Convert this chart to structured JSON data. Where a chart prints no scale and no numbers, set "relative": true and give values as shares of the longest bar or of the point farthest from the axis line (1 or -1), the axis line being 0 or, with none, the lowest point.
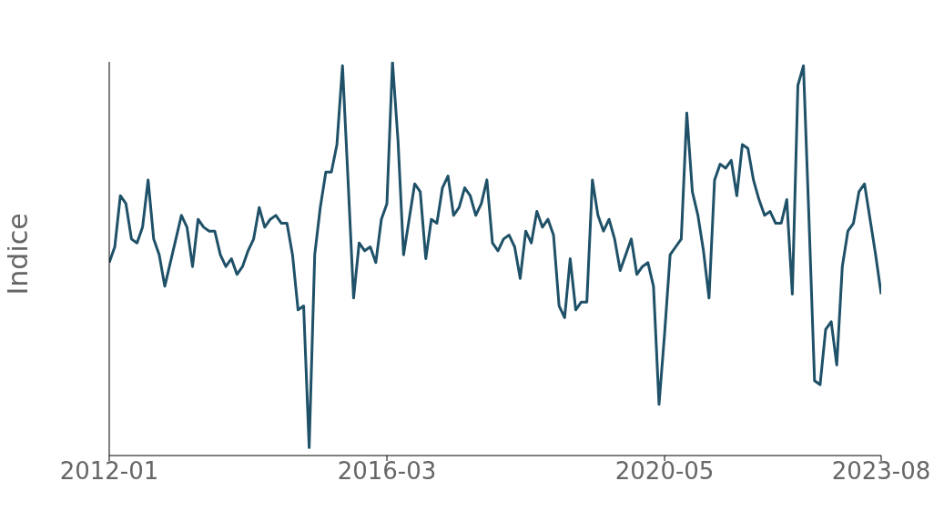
{
  "chart_data": {
    "type": "line",
    "ylabel": "Indice",
    "x": [
      "2012-01",
      "2012-02",
      "2012-03",
      "2012-04",
      "2012-05",
      "2012-06",
      "2012-07",
      "2012-08",
      "2012-09",
      "2012-10",
      "2012-11",
      "2012-12",
      "2013-01",
      "2013-02",
      "2013-03",
      "2013-04",
      "2013-05",
      "2013-06",
      "2013-07",
      "2013-08",
      "2013-09",
      "2013-10",
      "2013-11",
      "2013-12",
      "2014-01",
      "2014-02",
      "2014-03",
      "2014-04",
      "2014-05",
      "2014-06",
      "2014-07",
      "2014-08",
      "2014-09",
      "2014-10",
      "2014-11",
      "2014-12",
      "2015-01",
      "2015-02",
      "2015-03",
      "2015-04",
      "2015-05",
      "2015-06",
      "2015-07",
      "2015-08",
      "2015-09",
      "2015-10",
      "2015-11",
      "2015-12",
      "2016-01",
      "2016-02",
      "2016-03",
      "2016-04",
      "2016-05",
      "2016-06",
      "2016-07",
      "2016-08",
      "2016-09",
      "2016-10",
      "2016-11",
      "2016-12",
      "2017-01",
      "2017-02",
      "2017-03",
      "2017-04",
      "2017-05",
      "2017-06",
      "2017-07",
      "2017-08",
      "2017-09",
      "2017-10",
      "2017-11",
      "2017-12",
      "2018-01",
      "2018-02",
      "2018-03",
      "2018-04",
      "2018-05",
      "2018-06",
      "2018-07",
      "2018-08",
      "2018-09",
      "2018-10",
      "2018-11",
      "2018-12",
      "2019-01",
      "2019-02",
      "2019-03",
      "2019-04",
      "2019-05",
      "2019-06",
      "2019-07",
      "2019-08",
      "2019-09",
      "2019-10",
      "2019-11",
      "2019-12",
      "2020-01",
      "2020-02",
      "2020-03",
      "2020-04",
      "2020-05",
      "2020-06",
      "2020-07",
      "2020-08",
      "2020-09",
      "2020-10",
      "2020-11",
      "2020-12",
      "2021-01",
      "2021-02",
      "2021-03",
      "2021-04",
      "2021-05",
      "2021-06",
      "2021-07",
      "2021-08",
      "2021-09",
      "2021-10",
      "2021-11",
      "2021-12",
      "2022-01",
      "2022-02",
      "2022-03",
      "2022-04",
      "2022-05",
      "2022-06",
      "2022-07",
      "2022-08",
      "2022-09",
      "2022-10",
      "2022-11",
      "2022-12",
      "2023-01",
      "2023-02",
      "2023-03",
      "2023-04",
      "2023-05",
      "2023-06",
      "2023-07",
      "2023-08"
    ],
    "series": [
      {
        "color": "#1f5168",
        "values": [
          0.49,
          0.53,
          0.66,
          0.64,
          0.55,
          0.54,
          0.58,
          0.7,
          0.55,
          0.51,
          0.43,
          0.49,
          0.55,
          0.61,
          0.58,
          0.48,
          0.6,
          0.58,
          0.57,
          0.57,
          0.51,
          0.48,
          0.5,
          0.46,
          0.48,
          0.52,
          0.55,
          0.63,
          0.58,
          0.6,
          0.61,
          0.59,
          0.59,
          0.51,
          0.37,
          0.38,
          0.02,
          0.51,
          0.63,
          0.72,
          0.72,
          0.79,
          0.99,
          0.7,
          0.4,
          0.54,
          0.52,
          0.53,
          0.49,
          0.6,
          0.64,
          1,
          0.8,
          0.51,
          0.6,
          0.69,
          0.67,
          0.5,
          0.6,
          0.59,
          0.68,
          0.71,
          0.61,
          0.63,
          0.68,
          0.66,
          0.61,
          0.64,
          0.7,
          0.54,
          0.52,
          0.55,
          0.56,
          0.53,
          0.45,
          0.57,
          0.54,
          0.62,
          0.58,
          0.6,
          0.56,
          0.38,
          0.35,
          0.5,
          0.37,
          0.39,
          0.39,
          0.7,
          0.61,
          0.57,
          0.6,
          0.55,
          0.47,
          0.51,
          0.55,
          0.46,
          0.48,
          0.49,
          0.43,
          0.13,
          0.31,
          0.51,
          0.53,
          0.55,
          0.87,
          0.67,
          0.61,
          0.52,
          0.4,
          0.7,
          0.74,
          0.73,
          0.75,
          0.66,
          0.79,
          0.78,
          0.7,
          0.65,
          0.61,
          0.62,
          0.59,
          0.59,
          0.65,
          0.41,
          0.94,
          0.99,
          0.6,
          0.19,
          0.18,
          0.32,
          0.34,
          0.23,
          0.48,
          0.57,
          0.59,
          0.67,
          0.69,
          0.6,
          0.51,
          0.41
        ]
      }
    ],
    "relative": true,
    "xlim": [
      "2012-01",
      "2023-08"
    ],
    "xticks": [
      "2012-01",
      "2016-03",
      "2020-05",
      "2023-08"
    ],
    "grid": false,
    "legend": false,
    "marker": "none",
    "line_style": "solid"
  }
}
